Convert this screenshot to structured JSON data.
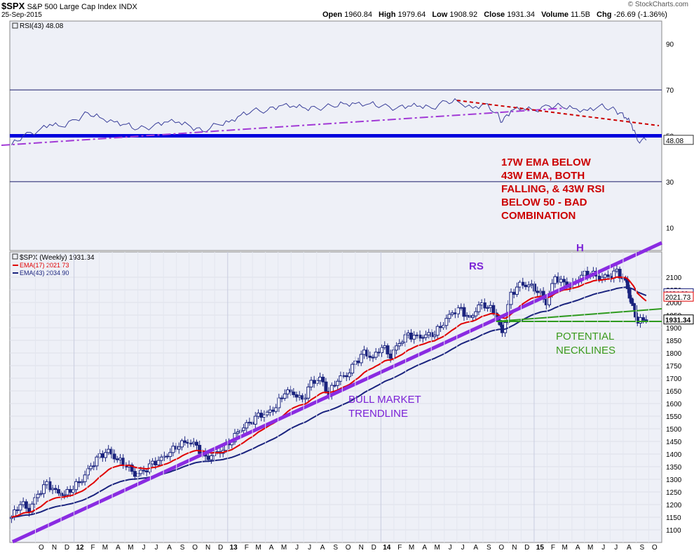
{
  "header": {
    "symbol": "$SPX",
    "name": "S&P 500 Large Cap Index",
    "exchange": "INDX",
    "date": "25-Sep-2015",
    "watermark": "© StockCharts.com",
    "ohlc": [
      {
        "label": "Open",
        "value": "1960.84"
      },
      {
        "label": "High",
        "value": "1979.64"
      },
      {
        "label": "Low",
        "value": "1908.92"
      },
      {
        "label": "Close",
        "value": "1931.34"
      },
      {
        "label": "Volume",
        "value": "11.5B"
      },
      {
        "label": "Chg",
        "value": "-26.69 (-1.36%)"
      }
    ]
  },
  "colors": {
    "price_bars": "#1a237e",
    "ema17": "#e00000",
    "ema43": "#1a237e",
    "rsi_line": "#3a3f9a",
    "rsi_50_line": "#0000dd",
    "bull_trendline": "#8a2be2",
    "rsi_trendline": "#a23ad6",
    "rsi_downtrend": "#cc0000",
    "necklines": "#2e9a1e",
    "annotation_red": "#cc0000",
    "annotation_purple": "#7b22d6",
    "annotation_green": "#3a9a1c",
    "panel_bg": "#eef0f7"
  },
  "chart_data": [
    {
      "type": "line",
      "panel": "rsi",
      "legend": "RSI(43) 48.08",
      "ylim": [
        0,
        100
      ],
      "y_ticks": [
        10,
        30,
        50,
        70,
        90
      ],
      "reference_lines": [
        30,
        50,
        70
      ],
      "last_value_label": "48.08",
      "x_dates": [
        "2011-08-05",
        "2011-09-02",
        "2011-10-07",
        "2011-11-04",
        "2011-12-02",
        "2012-01-06",
        "2012-02-03",
        "2012-03-02",
        "2012-04-06",
        "2012-05-04",
        "2012-06-01",
        "2012-07-06",
        "2012-08-03",
        "2012-09-07",
        "2012-10-05",
        "2012-11-02",
        "2012-12-07",
        "2013-01-04",
        "2013-02-01",
        "2013-03-01",
        "2013-04-05",
        "2013-05-03",
        "2013-06-07",
        "2013-07-05",
        "2013-08-02",
        "2013-09-06",
        "2013-10-04",
        "2013-11-01",
        "2013-12-06",
        "2014-01-03",
        "2014-02-07",
        "2014-03-07",
        "2014-04-04",
        "2014-05-02",
        "2014-06-06",
        "2014-07-03",
        "2014-08-08",
        "2014-09-05",
        "2014-10-03",
        "2014-10-17",
        "2014-11-07",
        "2014-12-05",
        "2015-01-02",
        "2015-02-06",
        "2015-03-06",
        "2015-04-03",
        "2015-05-08",
        "2015-06-05",
        "2015-07-03",
        "2015-07-24",
        "2015-08-07",
        "2015-08-21",
        "2015-09-04",
        "2015-09-25"
      ],
      "y": [
        46,
        50,
        52,
        55,
        54,
        57,
        60,
        58,
        56,
        55,
        53,
        54,
        56,
        56,
        54,
        52,
        55,
        56,
        59,
        61,
        61,
        63,
        63,
        62,
        62,
        63,
        64,
        64,
        64,
        63,
        62,
        63,
        63,
        62,
        65,
        65,
        62,
        64,
        60,
        56,
        61,
        62,
        61,
        63,
        63,
        62,
        61,
        63,
        62,
        60,
        58,
        55,
        48,
        48.08
      ]
    },
    {
      "type": "ohlc",
      "panel": "price",
      "legend": "$SPX (Weekly) 1931.34",
      "ylim": [
        1050,
        2200
      ],
      "y_ticks": [
        1100,
        1150,
        1200,
        1250,
        1300,
        1350,
        1400,
        1450,
        1500,
        1550,
        1600,
        1650,
        1700,
        1750,
        1800,
        1850,
        1900,
        1950,
        2000,
        2050,
        2100
      ],
      "x_tick_labels": [
        "O",
        "N",
        "D",
        "12",
        "F",
        "M",
        "A",
        "M",
        "J",
        "J",
        "A",
        "S",
        "O",
        "N",
        "D",
        "13",
        "F",
        "M",
        "A",
        "M",
        "J",
        "J",
        "A",
        "S",
        "O",
        "N",
        "D",
        "14",
        "F",
        "M",
        "A",
        "M",
        "J",
        "J",
        "A",
        "S",
        "O",
        "N",
        "D",
        "15",
        "F",
        "M",
        "A",
        "M",
        "J",
        "J",
        "A",
        "S",
        "O"
      ],
      "x_dates": [
        "2011-08-05",
        "2011-08-26",
        "2011-09-16",
        "2011-10-07",
        "2011-10-28",
        "2011-11-18",
        "2011-12-09",
        "2011-12-30",
        "2012-01-20",
        "2012-02-10",
        "2012-03-02",
        "2012-03-23",
        "2012-04-13",
        "2012-05-04",
        "2012-05-25",
        "2012-06-15",
        "2012-07-06",
        "2012-07-27",
        "2012-08-17",
        "2012-09-07",
        "2012-09-28",
        "2012-10-19",
        "2012-11-09",
        "2012-11-30",
        "2012-12-21",
        "2013-01-11",
        "2013-02-01",
        "2013-02-22",
        "2013-03-15",
        "2013-04-05",
        "2013-04-26",
        "2013-05-17",
        "2013-06-07",
        "2013-06-28",
        "2013-07-19",
        "2013-08-09",
        "2013-08-30",
        "2013-09-20",
        "2013-10-11",
        "2013-11-01",
        "2013-11-22",
        "2013-12-13",
        "2014-01-03",
        "2014-01-24",
        "2014-02-14",
        "2014-03-07",
        "2014-03-28",
        "2014-04-18",
        "2014-05-09",
        "2014-05-30",
        "2014-06-20",
        "2014-07-11",
        "2014-08-01",
        "2014-08-22",
        "2014-09-12",
        "2014-10-03",
        "2014-10-17",
        "2014-11-07",
        "2014-11-28",
        "2014-12-19",
        "2015-01-09",
        "2015-01-30",
        "2015-02-20",
        "2015-03-13",
        "2015-04-03",
        "2015-04-24",
        "2015-05-15",
        "2015-06-05",
        "2015-06-26",
        "2015-07-17",
        "2015-08-07",
        "2015-08-21",
        "2015-09-04",
        "2015-09-25"
      ],
      "close": [
        1150,
        1210,
        1180,
        1240,
        1280,
        1250,
        1240,
        1270,
        1300,
        1350,
        1390,
        1410,
        1380,
        1360,
        1320,
        1330,
        1360,
        1380,
        1410,
        1440,
        1450,
        1430,
        1380,
        1400,
        1420,
        1460,
        1500,
        1520,
        1550,
        1560,
        1590,
        1650,
        1640,
        1610,
        1680,
        1700,
        1640,
        1700,
        1710,
        1760,
        1800,
        1780,
        1830,
        1790,
        1840,
        1870,
        1860,
        1870,
        1880,
        1920,
        1960,
        1970,
        1930,
        1990,
        1990,
        1950,
        1880,
        2030,
        2070,
        2070,
        2050,
        2000,
        2100,
        2070,
        2070,
        2110,
        2120,
        2100,
        2100,
        2120,
        2080,
        2000,
        1930,
        1931.34
      ]
    }
  ],
  "indicators": {
    "ema17": {
      "legend": "EMA(17) 2021.73",
      "label": "2021.73"
    },
    "ema43": {
      "legend": "EMA(43) 2034.90",
      "label": "2034.90"
    },
    "price_label": "1931.34"
  },
  "annotations": {
    "rsi_text": [
      "17W EMA BELOW",
      "43W EMA, BOTH",
      "FALLING, & 43W RSI",
      "BELOW 50 - BAD",
      "COMBINATION"
    ],
    "rs": "RS",
    "h": "H",
    "bull_trendline": [
      "BULL MARKET",
      "TRENDLINE"
    ],
    "necklines": [
      "POTENTIAL",
      "NECKLINES"
    ]
  }
}
